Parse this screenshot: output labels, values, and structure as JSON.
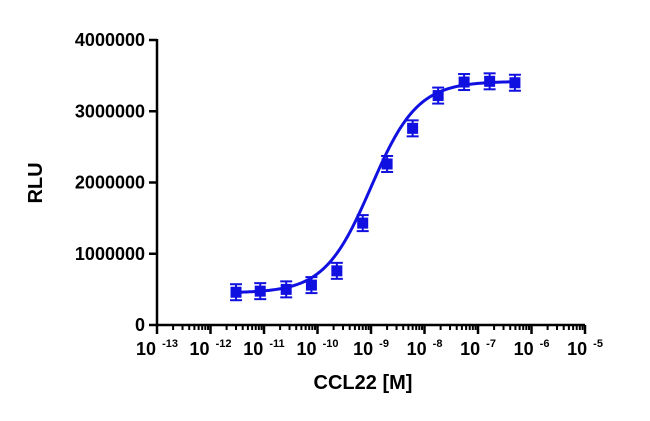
{
  "chart_data": {
    "type": "scatter",
    "xlabel": "CCL22 [M]",
    "ylabel": "RLU",
    "x_scale": "log",
    "xlim": [
      1e-13,
      1e-05
    ],
    "ylim": [
      0,
      4000000
    ],
    "y_ticks": [
      0,
      1000000,
      2000000,
      3000000,
      4000000
    ],
    "y_tick_labels": [
      "0",
      "1000000",
      "2000000",
      "3000000",
      "4000000"
    ],
    "x_tick_labels": [
      {
        "base": "10",
        "exp": "-13"
      },
      {
        "base": "10",
        "exp": "-12"
      },
      {
        "base": "10",
        "exp": "-11"
      },
      {
        "base": "10",
        "exp": "-10"
      },
      {
        "base": "10",
        "exp": "-9"
      },
      {
        "base": "10",
        "exp": "-8"
      },
      {
        "base": "10",
        "exp": "-7"
      },
      {
        "base": "10",
        "exp": "-6"
      },
      {
        "base": "10",
        "exp": "-5"
      }
    ],
    "grid": false,
    "legend": "none",
    "marker": "square",
    "color": "#1010e0",
    "series": [
      {
        "x": [
          3e-12,
          8.5e-12,
          2.6e-11,
          7.7e-11,
          2.3e-10,
          7e-10,
          2e-09,
          6e-09,
          1.8e-08,
          5.5e-08,
          1.65e-07,
          4.9e-07
        ],
        "y": [
          460000,
          475000,
          500000,
          560000,
          760000,
          1430000,
          2260000,
          2760000,
          3220000,
          3410000,
          3420000,
          3400000
        ]
      }
    ],
    "fit": {
      "type": "sigmoidal dose-response",
      "bottom": 450000,
      "top": 3420000,
      "log_ec50": -9.0,
      "hill_slope": 1.0,
      "x_range": [
        3e-12,
        4.9e-07
      ]
    }
  }
}
